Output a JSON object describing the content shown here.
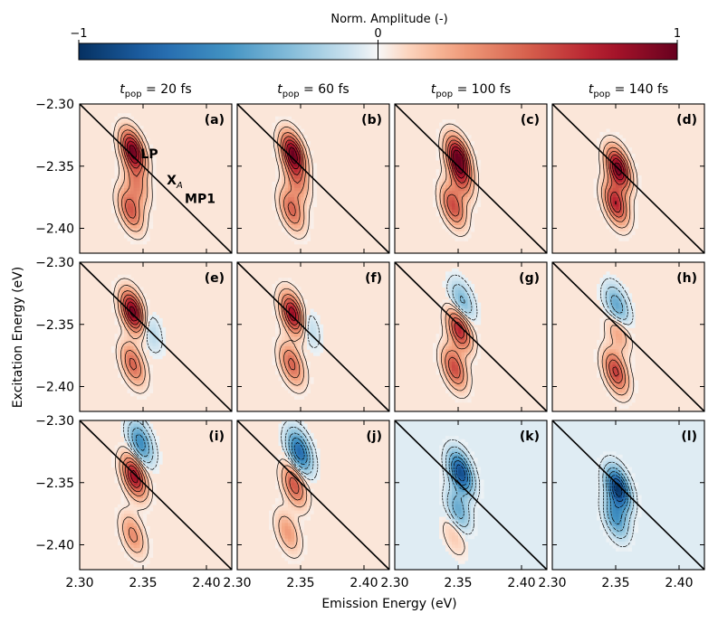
{
  "chart_data": {
    "type": "heatmap",
    "colorbar": {
      "label": "Norm. Amplitude (-)",
      "ticks": [
        -1,
        0,
        1
      ],
      "tick_labels": [
        "−1",
        "0",
        "1"
      ],
      "range": [
        -1,
        1
      ],
      "colors": {
        "negative": "#053061",
        "zero": "#f7f7f7",
        "positive": "#67001f"
      }
    },
    "columns": [
      {
        "t_pop": "20 fs"
      },
      {
        "t_pop": "60 fs"
      },
      {
        "t_pop": "100 fs"
      },
      {
        "t_pop": "140 fs"
      }
    ],
    "column_label_prefix": "t",
    "column_label_sub": "pop",
    "xlabel": "Emission Energy (eV)",
    "ylabel": "Excitation Energy (eV)",
    "xlim": [
      2.3,
      2.42
    ],
    "ylim": [
      -2.42,
      -2.3
    ],
    "x_ticks": [
      2.3,
      2.35,
      2.4
    ],
    "x_tick_labels": [
      "2.30",
      "2.35",
      "2.40"
    ],
    "y_ticks": [
      -2.3,
      -2.35,
      -2.4
    ],
    "y_tick_labels": [
      "−2.30",
      "−2.35",
      "−2.40"
    ],
    "diagonal": true,
    "panels": [
      {
        "label": "(a)",
        "row": 0,
        "col": 0,
        "peaks": [
          {
            "x": 2.342,
            "y": -2.338,
            "a": 1.0
          },
          {
            "x": 2.34,
            "y": -2.385,
            "a": 0.55
          },
          {
            "x": 2.345,
            "y": -2.365,
            "a": 0.35
          }
        ]
      },
      {
        "label": "(b)",
        "row": 0,
        "col": 1,
        "peaks": [
          {
            "x": 2.344,
            "y": -2.34,
            "a": 1.0
          },
          {
            "x": 2.343,
            "y": -2.385,
            "a": 0.5
          },
          {
            "x": 2.347,
            "y": -2.362,
            "a": 0.35
          }
        ]
      },
      {
        "label": "(c)",
        "row": 0,
        "col": 2,
        "peaks": [
          {
            "x": 2.35,
            "y": -2.343,
            "a": 1.0
          },
          {
            "x": 2.346,
            "y": -2.382,
            "a": 0.6
          },
          {
            "x": 2.352,
            "y": -2.36,
            "a": 0.45
          }
        ]
      },
      {
        "label": "(d)",
        "row": 0,
        "col": 3,
        "peaks": [
          {
            "x": 2.352,
            "y": -2.352,
            "a": 1.0
          },
          {
            "x": 2.35,
            "y": -2.38,
            "a": 0.75
          }
        ]
      },
      {
        "label": "(e)",
        "row": 1,
        "col": 0,
        "peaks": [
          {
            "x": 2.342,
            "y": -2.34,
            "a": 1.0
          },
          {
            "x": 2.342,
            "y": -2.382,
            "a": 0.5
          },
          {
            "x": 2.355,
            "y": -2.355,
            "a": -0.2
          }
        ]
      },
      {
        "label": "(f)",
        "row": 1,
        "col": 1,
        "peaks": [
          {
            "x": 2.344,
            "y": -2.342,
            "a": 0.9
          },
          {
            "x": 2.343,
            "y": -2.382,
            "a": 0.5
          },
          {
            "x": 2.355,
            "y": -2.352,
            "a": -0.2
          }
        ]
      },
      {
        "label": "(g)",
        "row": 1,
        "col": 2,
        "peaks": [
          {
            "x": 2.351,
            "y": -2.354,
            "a": 0.75
          },
          {
            "x": 2.347,
            "y": -2.385,
            "a": 0.6
          },
          {
            "x": 2.353,
            "y": -2.332,
            "a": -0.35
          }
        ]
      },
      {
        "label": "(h)",
        "row": 1,
        "col": 3,
        "peaks": [
          {
            "x": 2.35,
            "y": -2.388,
            "a": 0.65
          },
          {
            "x": 2.351,
            "y": -2.336,
            "a": -0.45
          },
          {
            "x": 2.352,
            "y": -2.355,
            "a": 0.3
          }
        ]
      },
      {
        "label": "(i)",
        "row": 2,
        "col": 0,
        "peaks": [
          {
            "x": 2.343,
            "y": -2.345,
            "a": 0.85
          },
          {
            "x": 2.342,
            "y": -2.392,
            "a": 0.35
          },
          {
            "x": 2.348,
            "y": -2.318,
            "a": -0.55
          }
        ]
      },
      {
        "label": "(j)",
        "row": 2,
        "col": 1,
        "peaks": [
          {
            "x": 2.345,
            "y": -2.352,
            "a": 0.55
          },
          {
            "x": 2.34,
            "y": -2.39,
            "a": 0.3
          },
          {
            "x": 2.349,
            "y": -2.325,
            "a": -0.75
          }
        ]
      },
      {
        "label": "(k)",
        "row": 2,
        "col": 2,
        "peaks": [
          {
            "x": 2.352,
            "y": -2.342,
            "a": -0.9
          },
          {
            "x": 2.35,
            "y": -2.372,
            "a": -0.4
          },
          {
            "x": 2.347,
            "y": -2.392,
            "a": 0.15
          }
        ]
      },
      {
        "label": "(l)",
        "row": 2,
        "col": 3,
        "peaks": [
          {
            "x": 2.352,
            "y": -2.355,
            "a": -1.0
          },
          {
            "x": 2.35,
            "y": -2.378,
            "a": -0.5
          }
        ]
      }
    ],
    "annotations": [
      {
        "panel": "(a)",
        "text": "LP",
        "x": 2.355,
        "y": -2.34
      },
      {
        "panel": "(a)",
        "text": "X",
        "sub": "A",
        "x": 2.375,
        "y": -2.361
      },
      {
        "panel": "(a)",
        "text": "MP1",
        "x": 2.395,
        "y": -2.376
      }
    ]
  }
}
